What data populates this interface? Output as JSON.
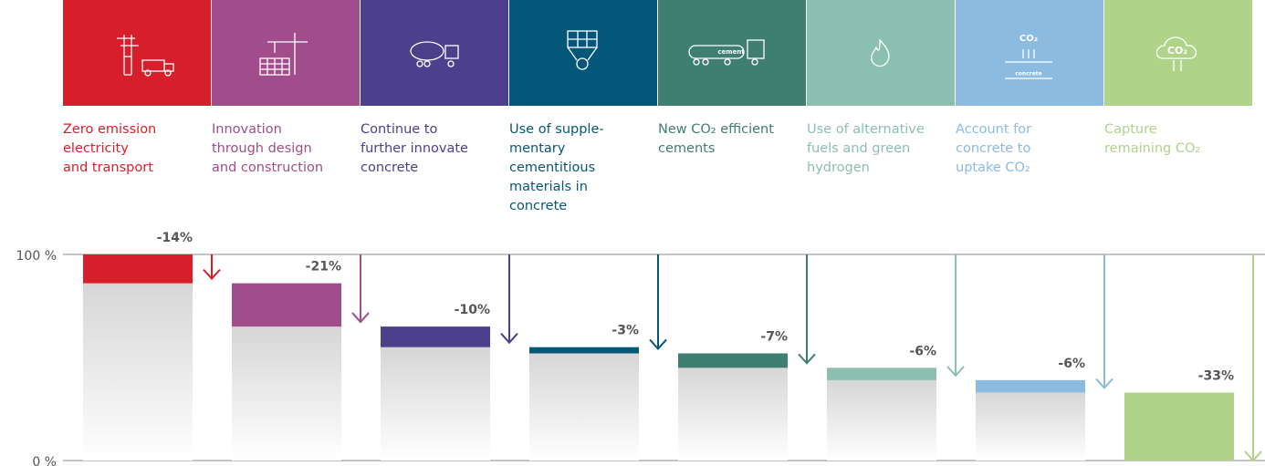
{
  "chart_data": {
    "type": "waterfall",
    "categories": [
      [
        "Zero emission",
        "electricity",
        "and transport"
      ],
      [
        "Innovation",
        "through design",
        "and construction"
      ],
      [
        "Continue to",
        "further innovate",
        "concrete"
      ],
      [
        "Use of supple-",
        "mentary",
        "cementitious",
        "materials in",
        "concrete"
      ],
      [
        "New CO₂ efficient",
        "cements"
      ],
      [
        "Use of alternative",
        "fuels and green",
        "hydrogen"
      ],
      [
        "Account for",
        "concrete to",
        "uptake CO₂"
      ],
      [
        "Capture",
        "remaining CO₂"
      ]
    ],
    "values": [
      -14,
      -21,
      -10,
      -3,
      -7,
      -6,
      -6,
      -33
    ],
    "value_labels": [
      "-14%",
      "-21%",
      "-10%",
      "-3%",
      "-7%",
      "-6%",
      "-6%",
      "-33%"
    ],
    "colors": [
      "#d71f2c",
      "#a14d8b",
      "#4c3f8c",
      "#05577a",
      "#3e7f72",
      "#8bbfaf",
      "#8bbbe0",
      "#b0d38a"
    ],
    "start": 100,
    "icon_texts": {
      "4": [
        "cement"
      ],
      "6": [
        "CO₂",
        "concrete"
      ],
      "7": [
        "CO₂"
      ]
    },
    "ylim": [
      0,
      100
    ],
    "yticks": [
      {
        "value": 0,
        "label": "0 %"
      },
      {
        "value": 100,
        "label": "100 %"
      }
    ]
  }
}
